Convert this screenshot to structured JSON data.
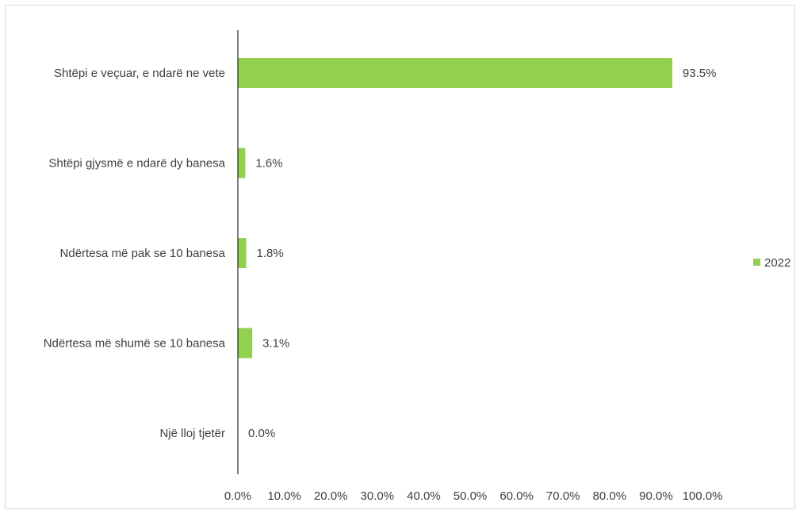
{
  "chart_data": {
    "type": "bar",
    "orientation": "horizontal",
    "categories": [
      "Shtëpi e veçuar, e ndarë ne vete",
      "Shtëpi gjysmë e ndarë dy banesa",
      "Ndërtesa më pak se 10 banesa",
      "Ndërtesa më shumë se 10 banesa",
      "Një lloj tjetër"
    ],
    "series": [
      {
        "name": "2022",
        "values": [
          93.5,
          1.6,
          1.8,
          3.1,
          0.0
        ],
        "color": "#92d050"
      }
    ],
    "value_labels": [
      "93.5%",
      "1.6%",
      "1.8%",
      "3.1%",
      "0.0%"
    ],
    "xlim": [
      0,
      100
    ],
    "x_ticks": [
      "0.0%",
      "10.0%",
      "20.0%",
      "30.0%",
      "40.0%",
      "50.0%",
      "60.0%",
      "70.0%",
      "80.0%",
      "90.0%",
      "100.0%"
    ],
    "grid": false,
    "legend_position": "right"
  }
}
